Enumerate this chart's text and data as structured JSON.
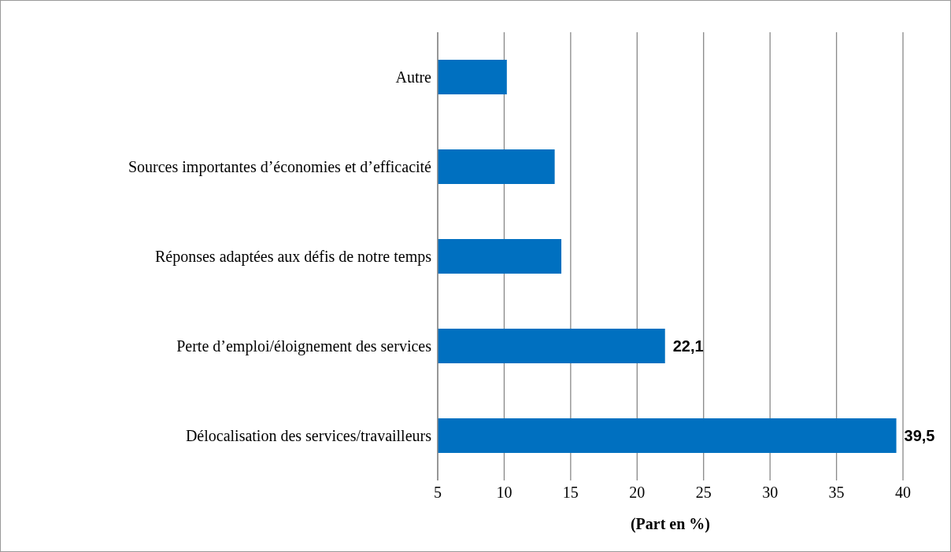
{
  "chart_data": {
    "type": "bar",
    "orientation": "horizontal",
    "categories": [
      "Autre",
      "Sources importantes d’économies et d’efficacité",
      "Réponses adaptées aux défis de notre temps",
      "Perte d’emploi/éloignement des services",
      "Délocalisation des services/travailleurs"
    ],
    "values": [
      10.2,
      13.8,
      14.3,
      22.1,
      39.5
    ],
    "value_labels": [
      null,
      null,
      null,
      "22,1",
      "39,5"
    ],
    "color": "#0070c0",
    "xlabel": "(Part en %)",
    "xlim": [
      5,
      40
    ],
    "xticks": [
      5,
      10,
      15,
      20,
      25,
      30,
      35,
      40
    ],
    "grid": "x"
  }
}
